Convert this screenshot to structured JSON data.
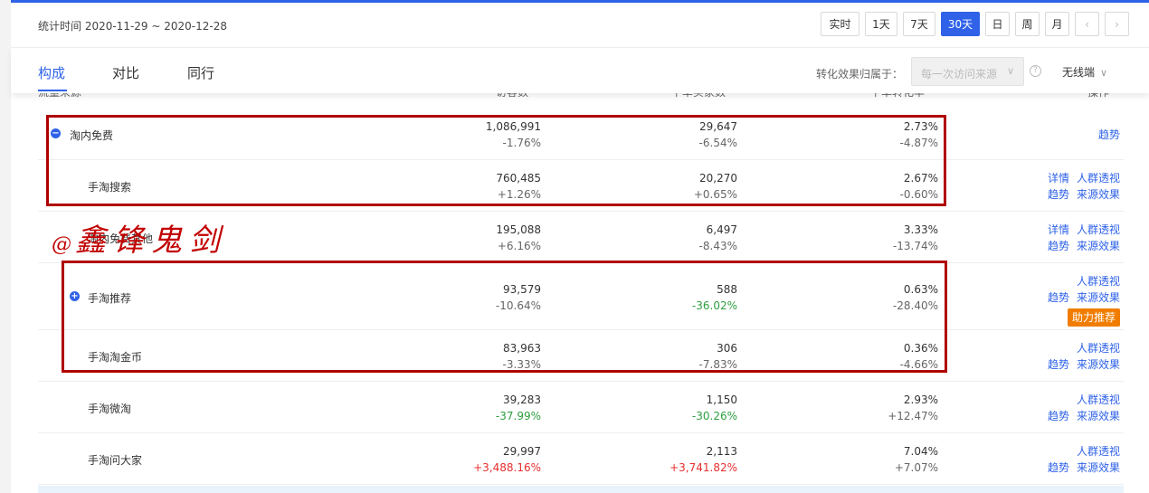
{
  "header": {
    "stat_time": "统计时间 2020-11-29 ~ 2020-12-28",
    "time_buttons": [
      "实时",
      "1天",
      "7天",
      "30天",
      "日",
      "周",
      "月"
    ],
    "prev": "‹",
    "next": "›"
  },
  "tabs": [
    "构成",
    "对比",
    "同行"
  ],
  "attribution": {
    "label": "转化效果归属于：",
    "value": "每一次访问来源",
    "help": "?"
  },
  "device": "无线端",
  "columns": {
    "source": "流量来源",
    "visitors": "访客数",
    "buyers": "下单买家数",
    "rate": "下单转化率",
    "ops": "操作"
  },
  "rows": [
    {
      "name": "淘内免费",
      "toggle": "−",
      "visitors": "1,086,991",
      "visitors_chg": "-1.76%",
      "buyers": "29,647",
      "buyers_chg": "-6.54%",
      "rate": "2.73%",
      "rate_chg": "-4.87%",
      "op_trend": "趋势"
    },
    {
      "name": "手淘搜索",
      "visitors": "760,485",
      "visitors_chg": "+1.26%",
      "buyers": "20,270",
      "buyers_chg": "+0.65%",
      "rate": "2.67%",
      "rate_chg": "-0.60%",
      "op_detail": "详情",
      "op_crowd": "人群透视",
      "op_trend": "趋势",
      "op_effect": "来源效果"
    },
    {
      "name": "淘内免费其他",
      "visitors": "195,088",
      "visitors_chg": "+6.16%",
      "buyers": "6,497",
      "buyers_chg": "-8.43%",
      "rate": "3.33%",
      "rate_chg": "-13.74%",
      "op_detail": "详情",
      "op_crowd": "人群透视",
      "op_trend": "趋势",
      "op_effect": "来源效果"
    },
    {
      "name": "手淘推荐",
      "toggle": "+",
      "visitors": "93,579",
      "visitors_chg": "-10.64%",
      "buyers": "588",
      "buyers_chg": "-36.02%",
      "rate": "0.63%",
      "rate_chg": "-28.40%",
      "op_crowd": "人群透视",
      "op_trend": "趋势",
      "op_effect": "来源效果",
      "badge": "助力推荐"
    },
    {
      "name": "手淘淘金币",
      "visitors": "83,963",
      "visitors_chg": "-3.33%",
      "buyers": "306",
      "buyers_chg": "-7.83%",
      "rate": "0.36%",
      "rate_chg": "-4.66%",
      "op_crowd": "人群透视",
      "op_trend": "趋势",
      "op_effect": "来源效果"
    },
    {
      "name": "手淘微淘",
      "visitors": "39,283",
      "visitors_chg": "-37.99%",
      "buyers": "1,150",
      "buyers_chg": "-30.26%",
      "rate": "2.93%",
      "rate_chg": "+12.47%",
      "op_crowd": "人群透视",
      "op_trend": "趋势",
      "op_effect": "来源效果"
    },
    {
      "name": "手淘问大家",
      "visitors": "29,997",
      "visitors_chg": "+3,488.16%",
      "buyers": "2,113",
      "buyers_chg": "+3,741.82%",
      "rate": "7.04%",
      "rate_chg": "+7.07%",
      "op_crowd": "人群透视",
      "op_trend": "趋势",
      "op_effect": "来源效果"
    }
  ],
  "watermark": {
    "at": "@",
    "text": "鑫锋鬼剑"
  },
  "colors": {
    "accent": "#2f62e8",
    "negative_green": "#2e9e3f",
    "positive_red": "#e62e2e",
    "highlight_box": "#b00000",
    "badge": "#f07d00"
  }
}
